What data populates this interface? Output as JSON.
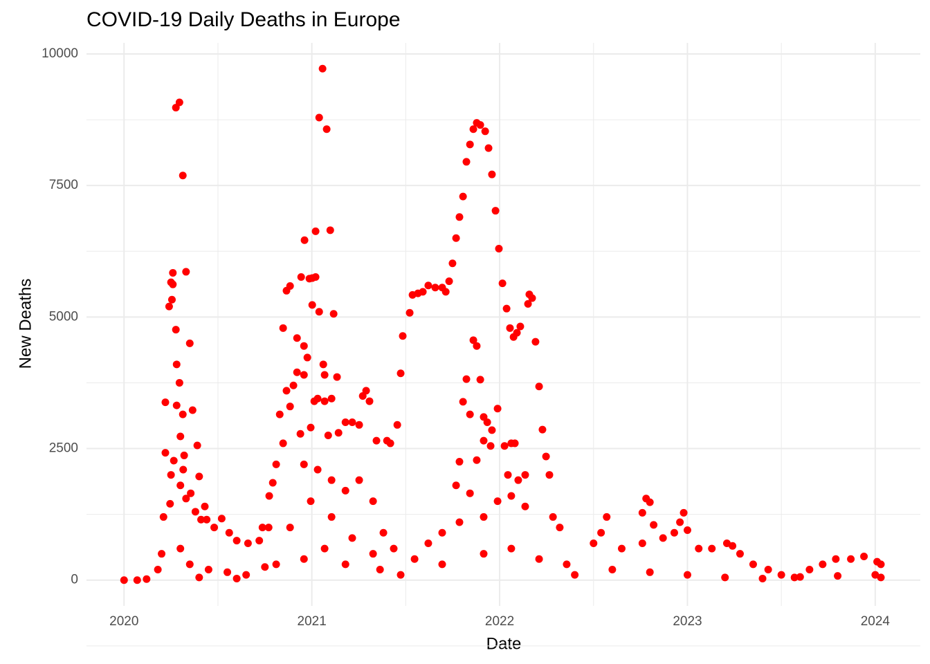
{
  "chart_data": {
    "type": "scatter",
    "title": "COVID-19 Daily Deaths in Europe",
    "x_label": "Date",
    "y_label": "New Deaths",
    "color": "#ff0000",
    "grid": true,
    "xlim": [
      2019.8,
      2024.24
    ],
    "ylim": [
      -490,
      10210
    ],
    "xticks": [
      2020,
      2021,
      2022,
      2023,
      2024
    ],
    "yticks": [
      0,
      2500,
      5000,
      7500,
      10000
    ],
    "x": [
      2020.0,
      2020.07,
      2020.12,
      2020.18,
      2020.2,
      2020.21,
      2020.22,
      2020.22,
      2020.24,
      2020.245,
      2020.25,
      2020.25,
      2020.255,
      2020.26,
      2020.26,
      2020.265,
      2020.276,
      2020.276,
      2020.28,
      2020.28,
      2020.295,
      2020.295,
      2020.3,
      2020.3,
      2020.313,
      2020.313,
      2020.315,
      2020.32,
      2020.33,
      2020.33,
      2020.35,
      2020.355,
      2020.365,
      2020.38,
      2020.39,
      2020.4,
      2020.41,
      2020.43,
      2020.44,
      2020.48,
      2020.52,
      2020.56,
      2020.6,
      2020.66,
      2020.72,
      2020.77,
      2020.3,
      2020.35,
      2020.45,
      2020.55,
      2020.65,
      2020.75,
      2020.4,
      2020.6,
      2020.847,
      2020.865,
      2020.884,
      2020.921,
      2020.943,
      2020.958,
      2020.961,
      2020.976,
      2020.987,
      2021.002,
      2021.002,
      2021.02,
      2021.02,
      2021.039,
      2021.039,
      2021.057,
      2021.061,
      2021.068,
      2021.079,
      2021.098,
      2021.116,
      2021.134,
      2020.921,
      2020.958,
      2020.865,
      2020.902,
      2021.013,
      2021.031,
      2021.068,
      2021.105,
      2020.829,
      2020.884,
      2020.939,
      2020.994,
      2021.087,
      2021.142,
      2021.179,
      2021.215,
      2021.252,
      2021.271,
      2021.289,
      2021.307,
      2021.344,
      2021.4,
      2021.418,
      2021.455,
      2020.847,
      2020.81,
      2020.792,
      2020.773,
      2020.958,
      2021.031,
      2021.105,
      2021.179,
      2021.252,
      2021.326,
      2021.381,
      2021.436,
      2020.737,
      2020.884,
      2020.994,
      2021.105,
      2021.215,
      2021.326,
      2020.81,
      2020.958,
      2021.068,
      2021.179,
      2021.363,
      2021.473,
      2021.473,
      2021.484,
      2021.521,
      2021.536,
      2021.565,
      2021.591,
      2021.62,
      2021.657,
      2021.694,
      2021.713,
      2021.731,
      2021.749,
      2021.768,
      2021.786,
      2021.805,
      2021.823,
      2021.842,
      2021.86,
      2021.878,
      2021.897,
      2021.923,
      2021.941,
      2021.959,
      2021.978,
      2021.996,
      2022.015,
      2022.037,
      2022.055,
      2022.074,
      2022.092,
      2022.11,
      2022.151,
      2022.158,
      2022.173,
      2022.191,
      2022.21,
      2022.228,
      2022.247,
      2022.265,
      2021.86,
      2021.878,
      2021.897,
      2021.823,
      2021.805,
      2021.842,
      2021.915,
      2021.934,
      2021.959,
      2021.989,
      2022.026,
      2022.062,
      2022.081,
      2021.786,
      2021.878,
      2021.915,
      2021.952,
      2022.044,
      2022.099,
      2022.136,
      2021.842,
      2021.768,
      2021.989,
      2022.062,
      2022.136,
      2022.284,
      2022.32,
      2021.547,
      2021.62,
      2021.694,
      2021.786,
      2021.915,
      2021.694,
      2021.915,
      2022.062,
      2022.21,
      2022.357,
      2022.5,
      2022.54,
      2022.57,
      2022.65,
      2022.76,
      2022.78,
      2022.8,
      2022.76,
      2022.82,
      2022.87,
      2022.93,
      2022.96,
      2022.98,
      2023.0,
      2023.06,
      2023.13,
      2023.21,
      2023.24,
      2023.28,
      2023.35,
      2023.43,
      2023.5,
      2023.57,
      2023.65,
      2023.72,
      2023.79,
      2023.87,
      2023.94,
      2024.01,
      2024.03,
      2022.4,
      2022.6,
      2022.8,
      2023.0,
      2023.2,
      2023.4,
      2023.6,
      2023.8,
      2024.0,
      2024.03
    ],
    "values": [
      0,
      0,
      20,
      200,
      500,
      1200,
      2420,
      3380,
      5200,
      1450,
      5660,
      2000,
      5330,
      5620,
      5840,
      2270,
      4760,
      8980,
      4100,
      3320,
      9080,
      3750,
      2730,
      1800,
      7690,
      3150,
      2100,
      2370,
      5860,
      1550,
      4500,
      1650,
      3230,
      1300,
      2560,
      1970,
      1150,
      1400,
      1150,
      1000,
      1170,
      900,
      750,
      700,
      750,
      1000,
      600,
      300,
      200,
      150,
      100,
      250,
      50,
      30,
      4790,
      5500,
      5590,
      4600,
      5760,
      4450,
      6460,
      4230,
      5730,
      5740,
      5230,
      6630,
      5760,
      8790,
      5100,
      9720,
      4100,
      3900,
      8570,
      6650,
      5060,
      3860,
      3950,
      3900,
      3600,
      3700,
      3400,
      3450,
      3400,
      3450,
      3150,
      3300,
      2780,
      2900,
      2750,
      2800,
      3000,
      3000,
      2950,
      3500,
      3600,
      3400,
      2650,
      2650,
      2600,
      2950,
      2600,
      2200,
      1850,
      1600,
      2200,
      2100,
      1900,
      1700,
      1900,
      1500,
      900,
      600,
      1000,
      1000,
      1500,
      1200,
      800,
      500,
      300,
      400,
      600,
      300,
      200,
      100,
      3930,
      4640,
      5080,
      5420,
      5450,
      5480,
      5600,
      5560,
      5560,
      5480,
      5680,
      6020,
      6500,
      6900,
      7290,
      7950,
      8280,
      8570,
      8690,
      8650,
      8530,
      8210,
      7710,
      7020,
      6300,
      5640,
      5160,
      4790,
      4620,
      4700,
      4820,
      5250,
      5430,
      5360,
      4530,
      3680,
      2860,
      2350,
      2000,
      4560,
      4450,
      3810,
      3820,
      3390,
      3150,
      3100,
      3000,
      2850,
      3260,
      2550,
      2600,
      2600,
      2250,
      2280,
      2650,
      2550,
      2000,
      1900,
      2000,
      1650,
      1800,
      1500,
      1600,
      1400,
      1200,
      1000,
      400,
      700,
      900,
      1100,
      1200,
      300,
      500,
      600,
      400,
      300,
      700,
      900,
      1200,
      600,
      700,
      1550,
      1480,
      1280,
      1050,
      800,
      900,
      1100,
      1280,
      950,
      600,
      600,
      700,
      650,
      500,
      300,
      200,
      100,
      50,
      200,
      300,
      400,
      400,
      450,
      350,
      300,
      100,
      200,
      150,
      100,
      50,
      30,
      60,
      80,
      100,
      50
    ]
  }
}
